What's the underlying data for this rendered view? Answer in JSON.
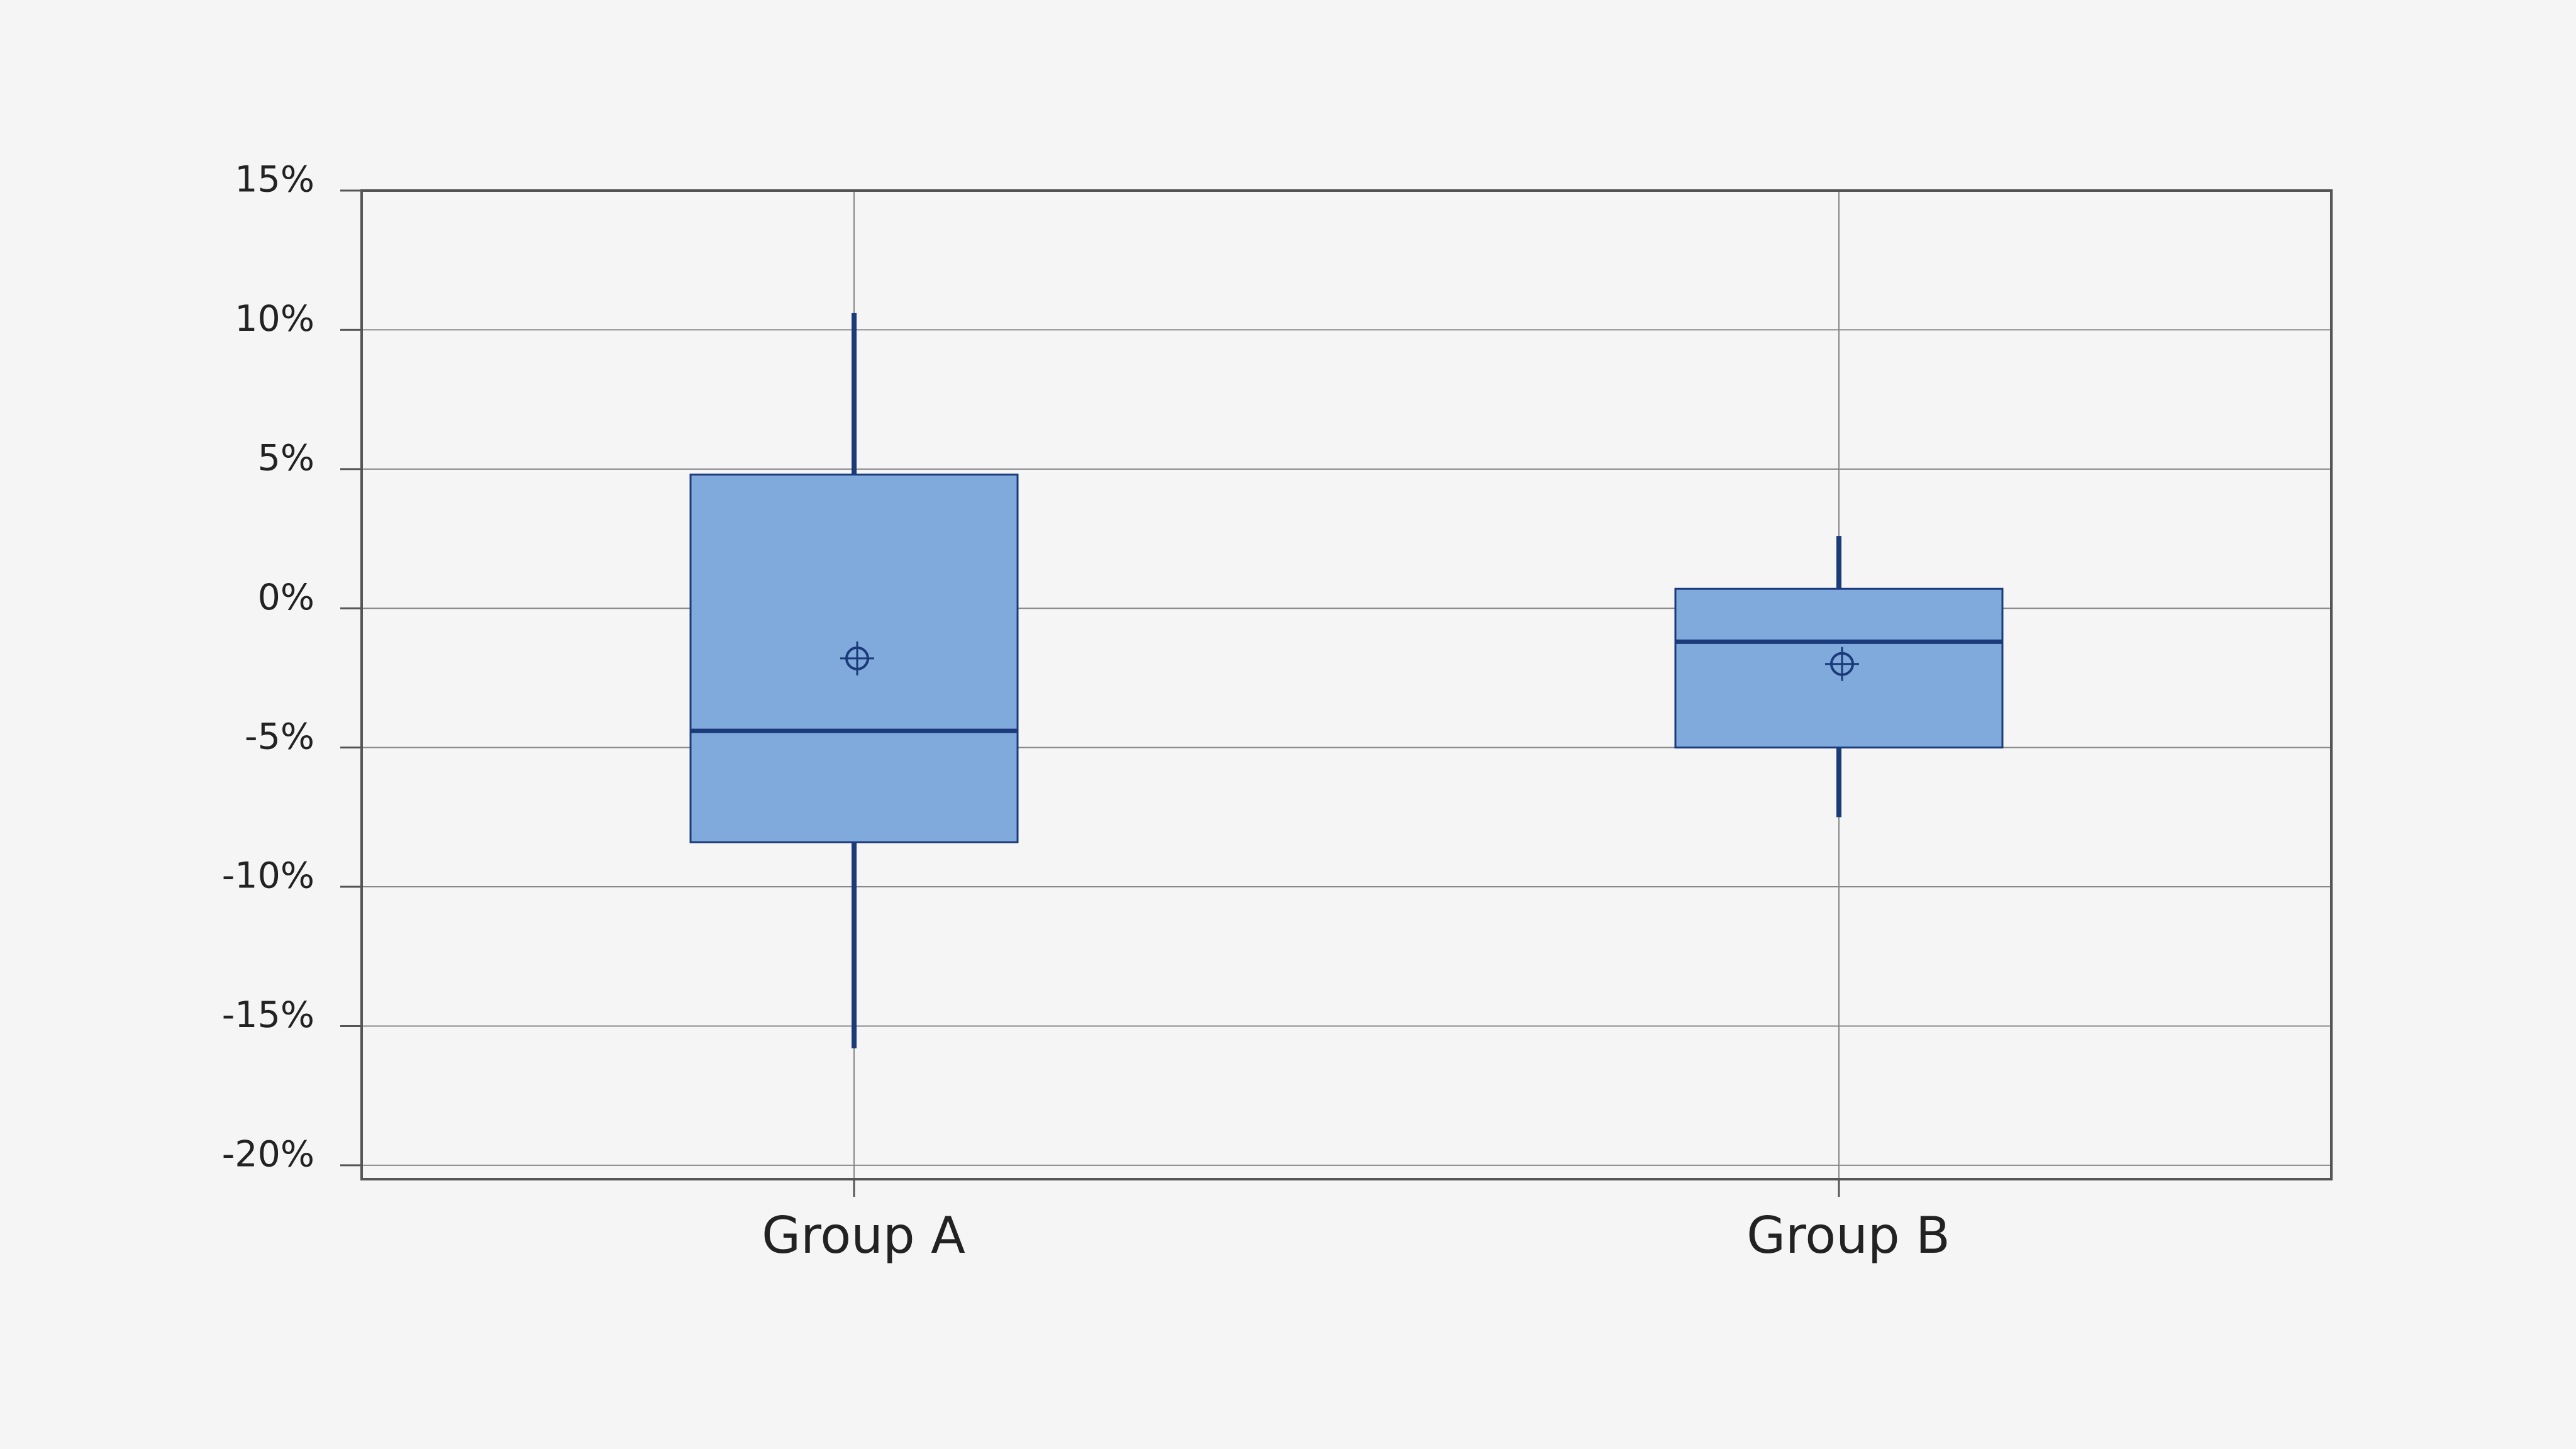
{
  "chart_data": {
    "type": "box",
    "categories": [
      "Group A",
      "Group B"
    ],
    "whisker_high": [
      10.6,
      2.6
    ],
    "q3": [
      4.8,
      0.7
    ],
    "median": [
      -4.4,
      -1.2
    ],
    "q1": [
      -8.4,
      -5.0
    ],
    "whisker_low": [
      -15.8,
      -7.5
    ],
    "mean": [
      -1.8,
      -2.0
    ],
    "color": "#80a9dc",
    "edge_color": "#1a3a7a",
    "ylim": [
      -20.5,
      15
    ],
    "yticks": [
      {
        "value": -20,
        "label": "-20%"
      },
      {
        "value": -15,
        "label": "-15%"
      },
      {
        "value": -10,
        "label": "-10%"
      },
      {
        "value": -5,
        "label": "-5%"
      },
      {
        "value": 0,
        "label": "0%"
      },
      {
        "value": 5,
        "label": "5%"
      },
      {
        "value": 10,
        "label": "10%"
      },
      {
        "value": 15,
        "label": "15%"
      }
    ],
    "grid": true
  }
}
